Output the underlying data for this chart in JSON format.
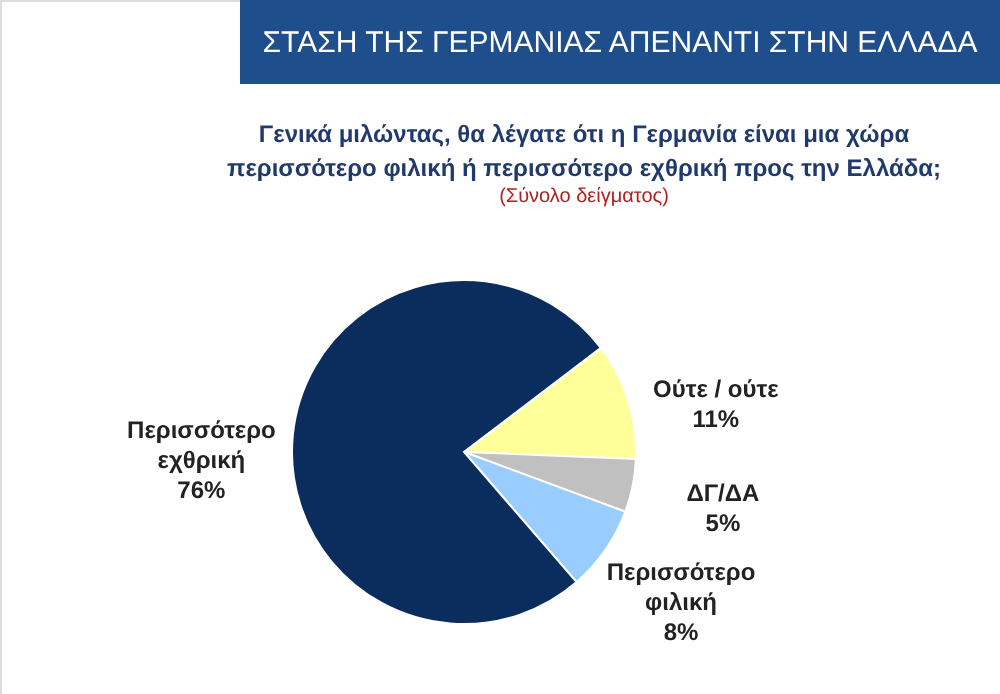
{
  "chart_data": {
    "type": "pie",
    "title": "ΣΤΑΣΗ ΤΗΣ ΓΕΡΜΑΝΙΑΣ ΑΠΕΝΑΝΤΙ ΣΤΗΝ ΕΛΛΑΔΑ",
    "subtitle": "Γενικά μιλώντας, θα λέγατε ότι η Γερμανία είναι μια χώρα περισσότερο φιλική ή περισσότερο εχθρική προς την Ελλάδα;",
    "annotations": [
      "(Σύνολο δείγματος)"
    ],
    "categories": [
      "Ούτε / ούτε",
      "ΔΓ/ΔΑ",
      "Περισσότερο φιλική",
      "Περισσότερο εχθρική"
    ],
    "values": [
      11,
      5,
      8,
      76
    ],
    "colors": [
      "#ffff99",
      "#c0c0c0",
      "#99ccff",
      "#0a2d5e"
    ],
    "value_labels": [
      "11%",
      "5%",
      "8%",
      "76%"
    ]
  }
}
